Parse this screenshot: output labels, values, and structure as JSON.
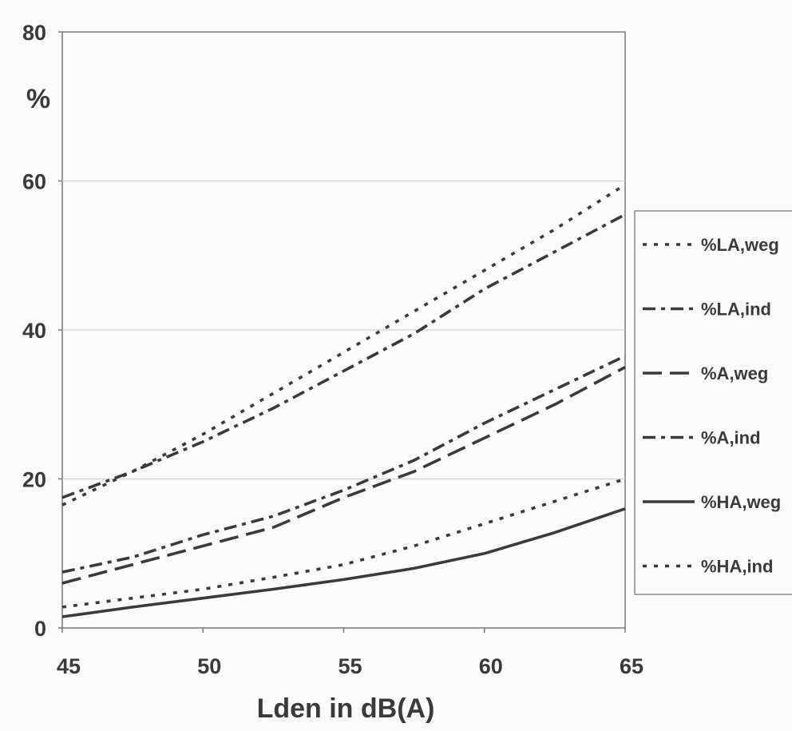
{
  "chart_data": {
    "type": "line",
    "ylabel": "%",
    "xlabel": "Lden in dB(A)",
    "xlim": [
      45,
      65
    ],
    "ylim": [
      0,
      80
    ],
    "x_ticks": [
      45,
      50,
      55,
      60,
      65
    ],
    "y_ticks": [
      0,
      20,
      40,
      60,
      80
    ],
    "grid": "horizontal",
    "legend_position": "right",
    "x": [
      45,
      47.5,
      50,
      52.5,
      55,
      57.5,
      60,
      62.5,
      65
    ],
    "series": [
      {
        "name": "%LA,weg",
        "dash": "dot",
        "color": "#3a3a3a",
        "values": [
          16.5,
          21,
          26,
          31.5,
          37,
          42.5,
          48,
          53.5,
          59.5
        ]
      },
      {
        "name": "%LA,ind",
        "dash": "dash-dot",
        "color": "#3a3a3a",
        "values": [
          17.5,
          21,
          25,
          29.5,
          34.5,
          39.5,
          45.5,
          50.5,
          55.5
        ]
      },
      {
        "name": "%A,weg",
        "dash": "long-dash",
        "color": "#3a3a3a",
        "values": [
          6,
          8.5,
          11,
          13.5,
          17.5,
          21,
          25.5,
          30,
          35
        ]
      },
      {
        "name": "%A,ind",
        "dash": "dash-dot",
        "color": "#3a3a3a",
        "values": [
          7.5,
          9.5,
          12.5,
          15,
          18.5,
          22.5,
          27.5,
          32,
          36.5
        ]
      },
      {
        "name": "%HA,weg",
        "dash": "solid",
        "color": "#3a3a3a",
        "values": [
          1.5,
          2.8,
          4,
          5.2,
          6.5,
          8,
          10,
          12.8,
          16
        ]
      },
      {
        "name": "%HA,ind",
        "dash": "dot",
        "color": "#3a3a3a",
        "values": [
          2.8,
          4,
          5.2,
          6.8,
          8.5,
          11,
          14,
          17,
          20
        ]
      }
    ]
  }
}
